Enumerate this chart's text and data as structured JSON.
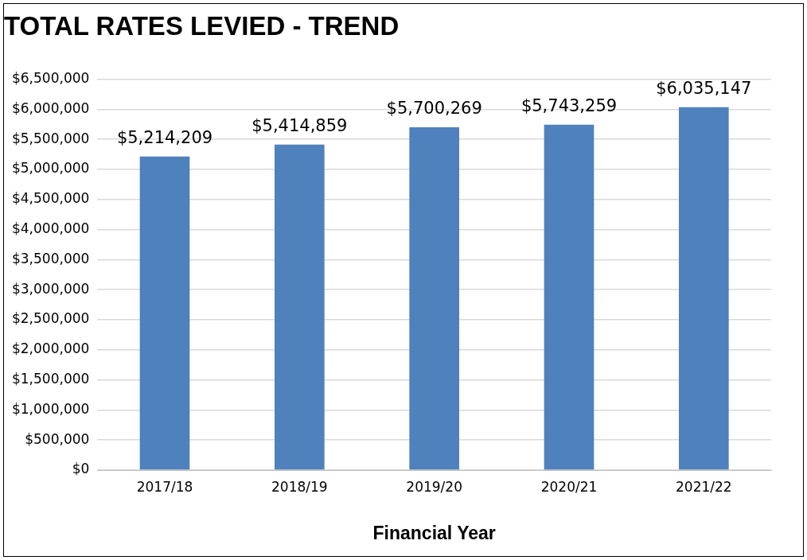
{
  "chart_data": {
    "type": "bar",
    "title": "TOTAL RATES LEVIED - TREND",
    "xlabel": "Financial Year",
    "categories": [
      "2017/18",
      "2018/19",
      "2019/20",
      "2020/21",
      "2021/22"
    ],
    "values": [
      5214209,
      5414859,
      5700269,
      5743259,
      6035147
    ],
    "value_labels": [
      "$5,214,209",
      "$5,414,859",
      "$5,700,269",
      "$5,743,259",
      "$6,035,147"
    ],
    "color": "#4f81bd",
    "ylim": [
      0,
      6500000
    ],
    "yticks": [
      {
        "value": 0,
        "label": "$0"
      },
      {
        "value": 500000,
        "label": "$500,000"
      },
      {
        "value": 1000000,
        "label": "$1,000,000"
      },
      {
        "value": 1500000,
        "label": "$1,500,000"
      },
      {
        "value": 2000000,
        "label": "$2,000,000"
      },
      {
        "value": 2500000,
        "label": "$2,500,000"
      },
      {
        "value": 3000000,
        "label": "$3,000,000"
      },
      {
        "value": 3500000,
        "label": "$3,500,000"
      },
      {
        "value": 4000000,
        "label": "$4,000,000"
      },
      {
        "value": 4500000,
        "label": "$4,500,000"
      },
      {
        "value": 5000000,
        "label": "$5,000,000"
      },
      {
        "value": 5500000,
        "label": "$5,500,000"
      },
      {
        "value": 6000000,
        "label": "$6,000,000"
      },
      {
        "value": 6500000,
        "label": "$6,500,000"
      }
    ],
    "grid": "y",
    "legend": false
  }
}
